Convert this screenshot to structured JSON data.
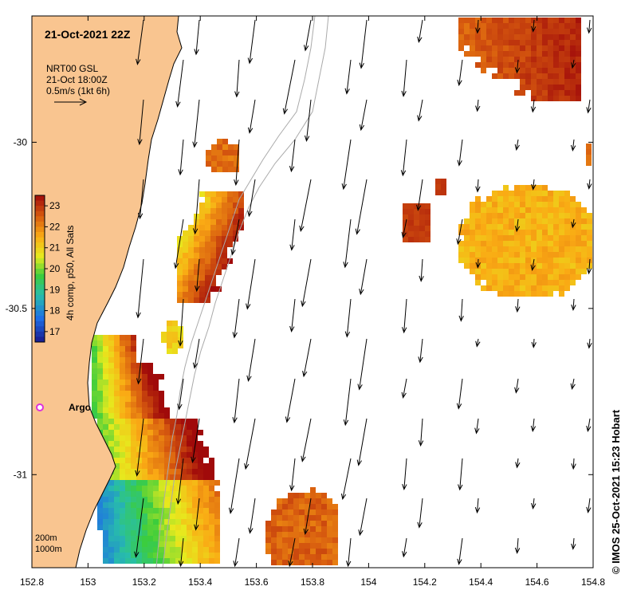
{
  "title": "21-Oct-2021 22Z",
  "current_legend": {
    "source": "NRT00 GSL",
    "time": "21-Oct 18:00Z",
    "scale": "0.5m/s (1kt 6h)"
  },
  "colorbar": {
    "label": "4h comp, p50, All Sats",
    "ticks": [
      "17",
      "18",
      "19",
      "20",
      "21",
      "22",
      "23"
    ],
    "range": [
      16.5,
      23.5
    ]
  },
  "axes": {
    "lon_ticks": [
      "152.8",
      "153",
      "153.2",
      "153.4",
      "153.6",
      "153.8",
      "154",
      "154.2",
      "154.4",
      "154.6",
      "154.8"
    ],
    "lat_ticks": [
      "-30",
      "-30.5",
      "-31"
    ],
    "lon_range": [
      152.8,
      154.8
    ],
    "lat_range": [
      -31.28,
      -29.62
    ]
  },
  "marker": {
    "label": "Argo",
    "color": "#dd33dd"
  },
  "depth_legend": {
    "contour1": "200m",
    "contour2": "1000m"
  },
  "credit": "© IMOS 25-Oct-2021 15:23 Hobart",
  "colors": {
    "land": "#f9c590",
    "coast": "#000000"
  }
}
